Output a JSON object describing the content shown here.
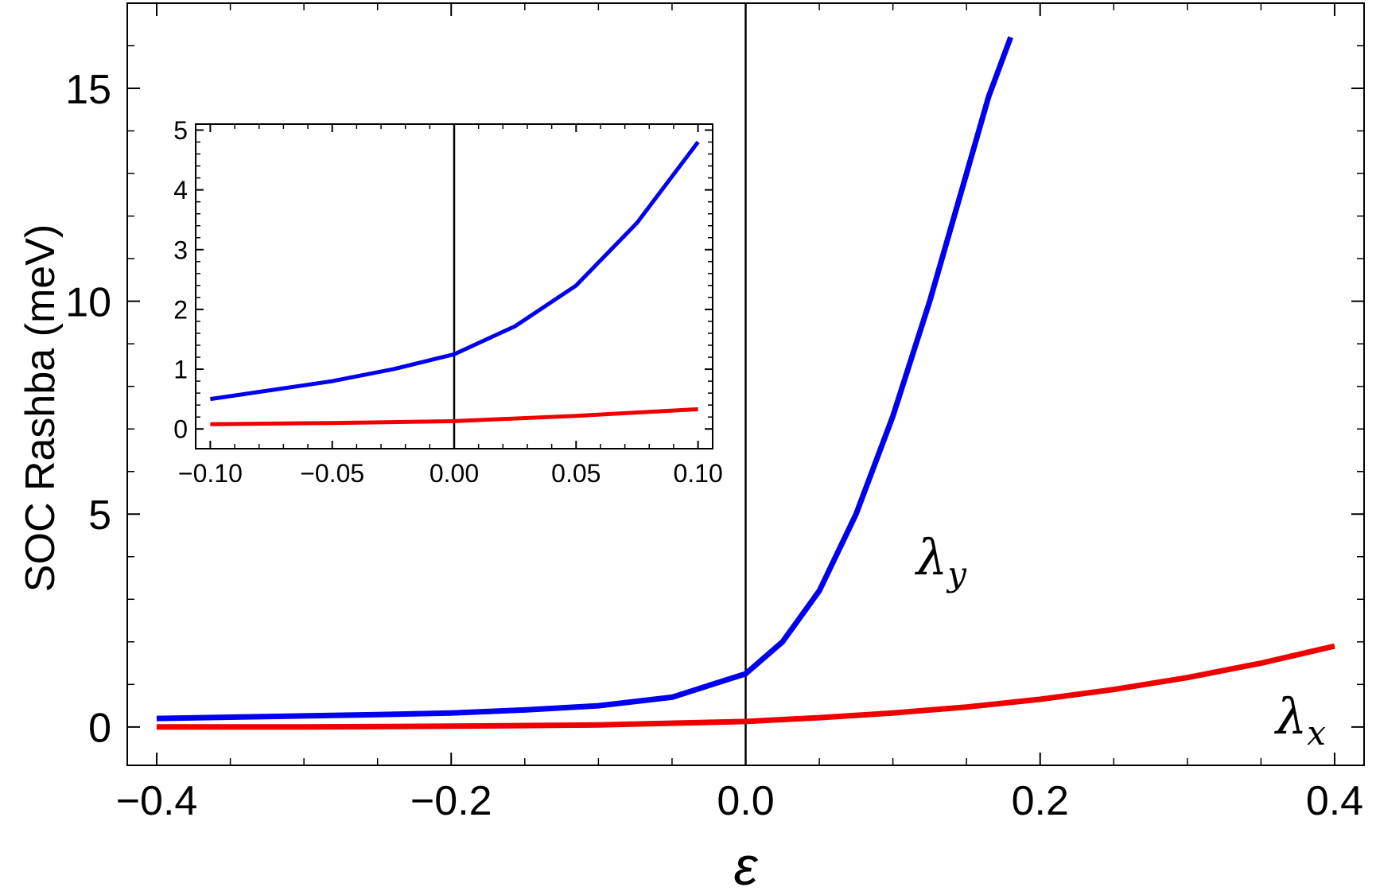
{
  "chart_data": [
    {
      "id": "main",
      "type": "line",
      "title": "",
      "xlabel": "ε",
      "ylabel": "SOC Rashba (meV)",
      "xlim": [
        -0.42,
        0.42
      ],
      "ylim": [
        -0.9,
        17.0
      ],
      "xticks": [
        -0.4,
        -0.2,
        0.0,
        0.2,
        0.4
      ],
      "xtick_labels": [
        "−0.4",
        "−0.2",
        "0.0",
        "0.2",
        "0.4"
      ],
      "yticks": [
        0,
        5,
        10,
        15
      ],
      "ytick_labels": [
        "0",
        "5",
        "10",
        "15"
      ],
      "grid": false,
      "zero_line_x": 0.0,
      "series": [
        {
          "name": "λy",
          "color": "#0000ee",
          "x": [
            -0.4,
            -0.35,
            -0.3,
            -0.25,
            -0.2,
            -0.15,
            -0.1,
            -0.05,
            0.0,
            0.025,
            0.05,
            0.075,
            0.1,
            0.125,
            0.15,
            0.165,
            0.18
          ],
          "y": [
            0.2,
            0.23,
            0.26,
            0.29,
            0.33,
            0.4,
            0.5,
            0.7,
            1.25,
            2.0,
            3.2,
            5.0,
            7.3,
            10.0,
            13.0,
            14.8,
            16.2
          ]
        },
        {
          "name": "λx",
          "color": "#ee0000",
          "x": [
            -0.4,
            -0.3,
            -0.2,
            -0.1,
            0.0,
            0.05,
            0.1,
            0.15,
            0.2,
            0.25,
            0.3,
            0.35,
            0.4
          ],
          "y": [
            0.0,
            0.0,
            0.02,
            0.05,
            0.13,
            0.22,
            0.33,
            0.47,
            0.65,
            0.88,
            1.16,
            1.5,
            1.9
          ]
        }
      ]
    },
    {
      "id": "inset",
      "type": "line",
      "title": "",
      "xlabel": "",
      "ylabel": "",
      "xlim": [
        -0.106,
        0.106
      ],
      "ylim": [
        -0.33,
        5.1
      ],
      "xticks": [
        -0.1,
        -0.05,
        0.0,
        0.05,
        0.1
      ],
      "xtick_labels": [
        "−0.10",
        "−0.05",
        "0.00",
        "0.05",
        "0.10"
      ],
      "yticks": [
        0,
        1,
        2,
        3,
        4,
        5
      ],
      "ytick_labels": [
        "0",
        "1",
        "2",
        "3",
        "4",
        "5"
      ],
      "grid": false,
      "zero_line_x": 0.0,
      "series": [
        {
          "name": "",
          "color": "#0000ee",
          "x": [
            -0.1,
            -0.075,
            -0.05,
            -0.025,
            0.0,
            0.025,
            0.05,
            0.075,
            0.1
          ],
          "y": [
            0.5,
            0.65,
            0.8,
            1.0,
            1.25,
            1.72,
            2.4,
            3.45,
            4.8
          ]
        },
        {
          "name": "",
          "color": "#ee0000",
          "x": [
            -0.1,
            -0.05,
            0.0,
            0.05,
            0.1
          ],
          "y": [
            0.08,
            0.1,
            0.13,
            0.22,
            0.33
          ]
        }
      ]
    }
  ]
}
